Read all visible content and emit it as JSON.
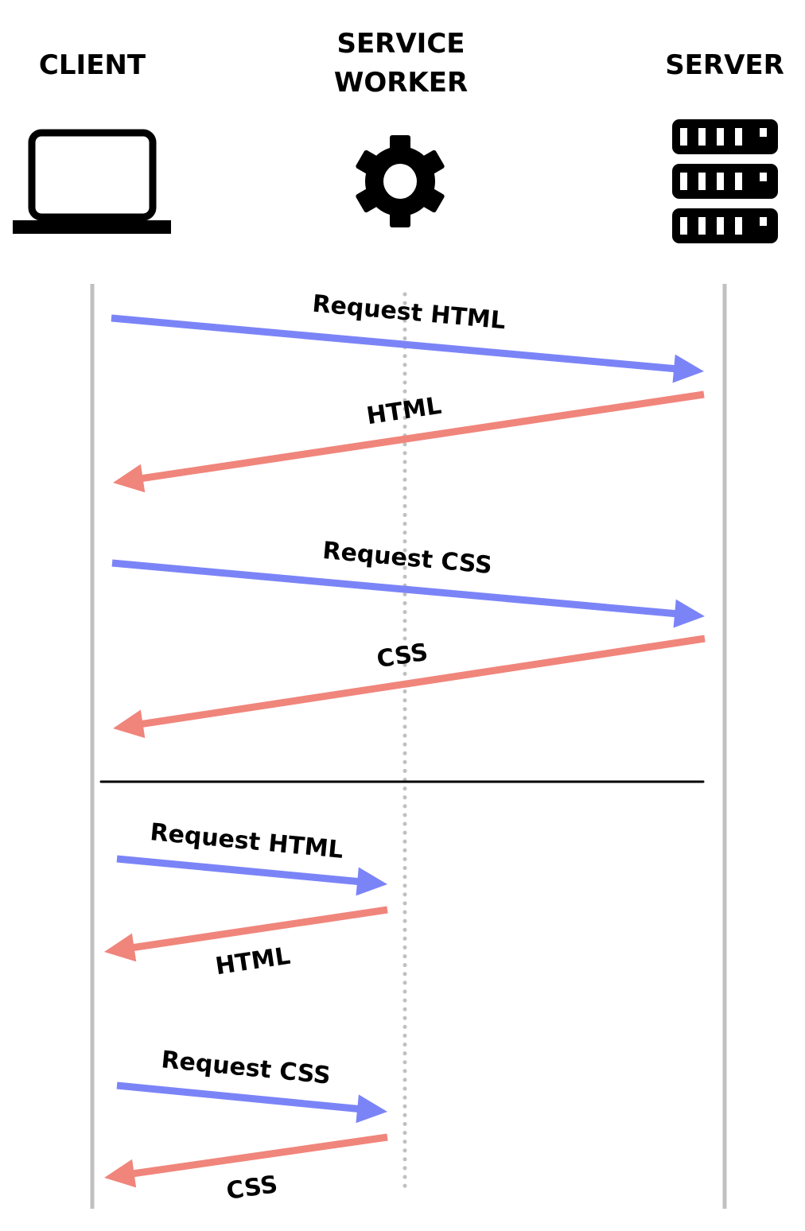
{
  "actors": {
    "client": {
      "label": "CLIENT",
      "icon": "laptop-icon"
    },
    "service_worker": {
      "label_line1": "SERVICE",
      "label_line2": "WORKER",
      "icon": "gear-icon"
    },
    "server": {
      "label": "SERVER",
      "icon": "server-rack-icon"
    }
  },
  "colors": {
    "request": "#7b84f7",
    "response": "#f0857c",
    "lifeline": "#c0c0c0",
    "divider": "#000000"
  },
  "messages": [
    {
      "label": "Request HTML",
      "from": "client",
      "to": "server",
      "kind": "request"
    },
    {
      "label": "HTML",
      "from": "server",
      "to": "client",
      "kind": "response"
    },
    {
      "label": "Request CSS",
      "from": "client",
      "to": "server",
      "kind": "request"
    },
    {
      "label": "CSS",
      "from": "server",
      "to": "client",
      "kind": "response"
    },
    {
      "label": "Request HTML",
      "from": "client",
      "to": "service_worker",
      "kind": "request"
    },
    {
      "label": "HTML",
      "from": "service_worker",
      "to": "client",
      "kind": "response"
    },
    {
      "label": "Request CSS",
      "from": "client",
      "to": "service_worker",
      "kind": "request"
    },
    {
      "label": "CSS",
      "from": "service_worker",
      "to": "client",
      "kind": "response"
    }
  ]
}
